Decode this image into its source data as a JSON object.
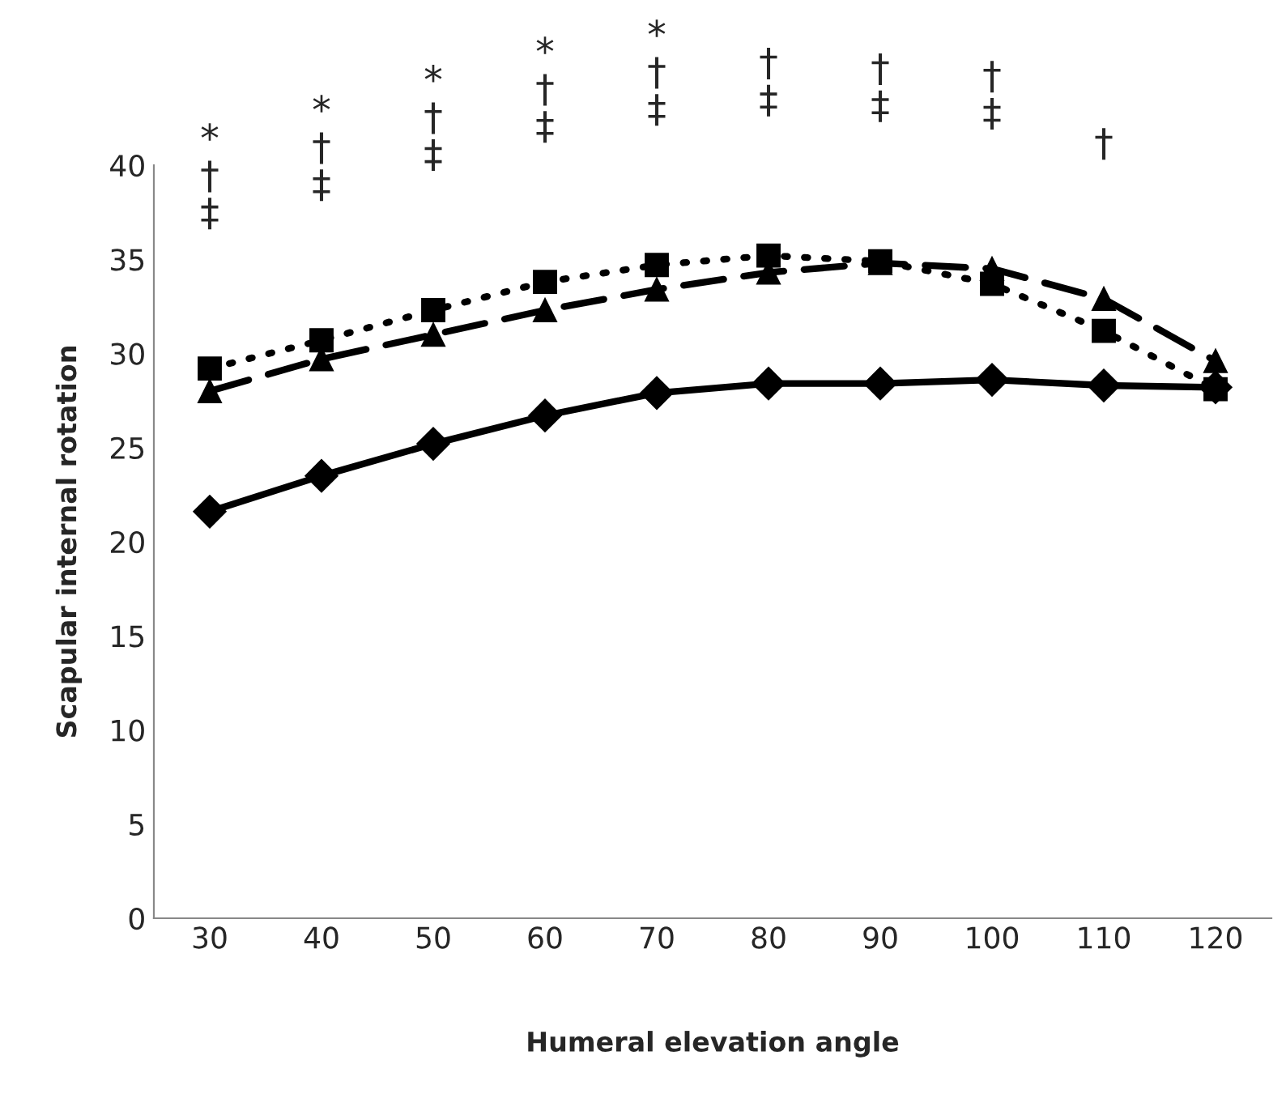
{
  "chart_data": {
    "type": "line",
    "xlabel": "Humeral elevation angle",
    "ylabel": "Scapular internal rotation",
    "categories": [
      "30",
      "40",
      "50",
      "60",
      "70",
      "80",
      "90",
      "100",
      "110",
      "120"
    ],
    "series": [
      {
        "color": "#000000",
        "marker": "diamond",
        "line_style": "solid",
        "values": [
          21.6,
          23.5,
          25.2,
          26.7,
          27.9,
          28.4,
          28.4,
          28.6,
          28.3,
          28.2
        ]
      },
      {
        "color": "#000000",
        "marker": "square",
        "line_style": "dotted",
        "values": [
          29.2,
          30.7,
          32.3,
          33.8,
          34.7,
          35.2,
          34.9,
          33.7,
          31.2,
          28.1
        ]
      },
      {
        "color": "#000000",
        "marker": "triangle",
        "line_style": "dashed",
        "values": [
          28.0,
          29.7,
          31.0,
          32.3,
          33.4,
          34.3,
          34.8,
          34.5,
          32.9,
          29.6
        ]
      }
    ],
    "ylim": [
      0,
      40
    ],
    "yticks": [
      0,
      5,
      10,
      15,
      20,
      25,
      30,
      35,
      40
    ],
    "grid": false,
    "legend": false,
    "annotations": [
      "*\n†\n‡",
      "*\n†\n‡",
      "*\n†\n‡",
      "*\n†\n‡",
      "*\n†\n‡",
      "†\n‡",
      "†\n‡",
      "†\n‡",
      "†"
    ]
  }
}
